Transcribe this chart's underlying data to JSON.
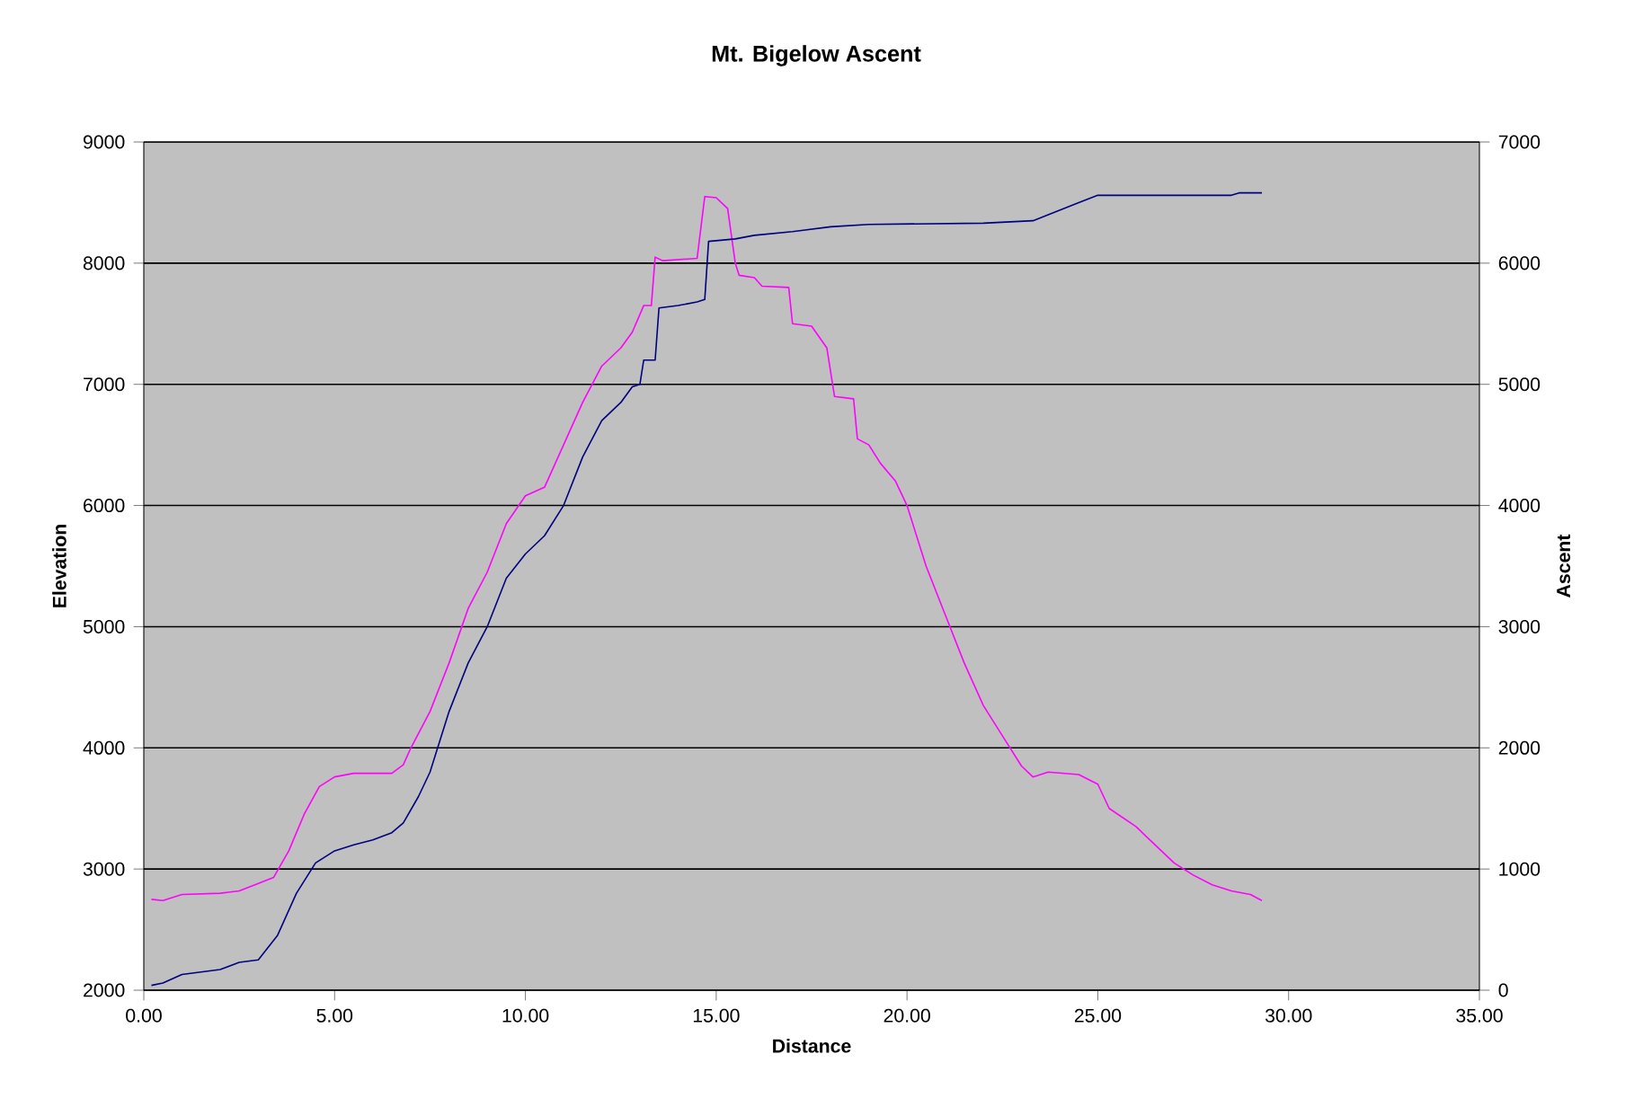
{
  "chart_data": {
    "type": "line",
    "title": "Mt. Bigelow Ascent",
    "xlabel": "Distance",
    "ylabel": "Elevation",
    "y2label": "Ascent",
    "xlim": [
      0,
      35
    ],
    "xticks": [
      {
        "value": 0,
        "label": "0.00"
      },
      {
        "value": 5,
        "label": "5.00"
      },
      {
        "value": 10,
        "label": "10.00"
      },
      {
        "value": 15,
        "label": "15.00"
      },
      {
        "value": 20,
        "label": "20.00"
      },
      {
        "value": 25,
        "label": "25.00"
      },
      {
        "value": 30,
        "label": "30.00"
      },
      {
        "value": 35,
        "label": "35.00"
      }
    ],
    "ylim": [
      2000,
      9000
    ],
    "yticks": [
      2000,
      3000,
      4000,
      5000,
      6000,
      7000,
      8000,
      9000
    ],
    "y2lim": [
      0,
      7000
    ],
    "y2ticks": [
      0,
      1000,
      2000,
      3000,
      4000,
      5000,
      6000,
      7000
    ],
    "grid": "y",
    "marker": "none",
    "line_style": "solid",
    "series": [
      {
        "color": "#ff00ff",
        "x": [
          0.2,
          0.5,
          1.0,
          2.0,
          2.5,
          3.0,
          3.4,
          3.8,
          4.2,
          4.6,
          5.0,
          5.5,
          6.5,
          6.8,
          7.0,
          7.5,
          8.0,
          8.5,
          9.0,
          9.5,
          10.0,
          10.5,
          11.0,
          11.5,
          12.0,
          12.5,
          12.8,
          13.1,
          13.3,
          13.4,
          13.6,
          14.5,
          14.7,
          15.0,
          15.3,
          15.5,
          15.6,
          16.0,
          16.2,
          16.9,
          17.0,
          17.5,
          17.9,
          18.1,
          18.6,
          18.7,
          19.0,
          19.3,
          19.7,
          20.0,
          20.5,
          21.0,
          21.5,
          22.0,
          22.5,
          23.0,
          23.3,
          23.7,
          24.5,
          25.0,
          25.3,
          26.0,
          26.5,
          27.0,
          27.5,
          28.0,
          28.5,
          29.0,
          29.3
        ],
        "values": [
          2750,
          2740,
          2790,
          2800,
          2820,
          2880,
          2930,
          3150,
          3450,
          3680,
          3760,
          3790,
          3790,
          3860,
          4000,
          4300,
          4700,
          5150,
          5450,
          5850,
          6080,
          6150,
          6500,
          6850,
          7150,
          7300,
          7430,
          7650,
          7650,
          8050,
          8020,
          8040,
          8550,
          8540,
          8450,
          8000,
          7900,
          7880,
          7810,
          7800,
          7500,
          7480,
          7300,
          6900,
          6880,
          6550,
          6500,
          6350,
          6200,
          6000,
          5500,
          5100,
          4700,
          4350,
          4100,
          3850,
          3760,
          3800,
          3780,
          3700,
          3500,
          3350,
          3200,
          3050,
          2950,
          2870,
          2820,
          2790,
          2740
        ]
      },
      {
        "color": "#000080",
        "axis": "y2",
        "x": [
          0.2,
          0.5,
          1.0,
          2.0,
          2.5,
          3.0,
          3.5,
          4.0,
          4.5,
          5.0,
          5.5,
          6.0,
          6.5,
          6.8,
          7.2,
          7.5,
          8.0,
          8.5,
          9.0,
          9.5,
          10.0,
          10.5,
          11.0,
          11.5,
          12.0,
          12.5,
          12.8,
          13.0,
          13.1,
          13.4,
          13.5,
          14.0,
          14.5,
          14.7,
          14.8,
          15.5,
          16.0,
          17.0,
          18.0,
          19.0,
          22.0,
          23.3,
          23.7,
          24.5,
          25.0,
          28.5,
          28.7,
          29.3
        ],
        "values": [
          40,
          60,
          130,
          170,
          230,
          250,
          450,
          800,
          1050,
          1150,
          1200,
          1240,
          1300,
          1380,
          1600,
          1800,
          2300,
          2700,
          3000,
          3400,
          3600,
          3750,
          4000,
          4400,
          4700,
          4850,
          4980,
          5000,
          5200,
          5200,
          5630,
          5650,
          5680,
          5700,
          6180,
          6200,
          6230,
          6260,
          6300,
          6320,
          6330,
          6350,
          6400,
          6500,
          6560,
          6560,
          6580,
          6580
        ]
      }
    ]
  }
}
